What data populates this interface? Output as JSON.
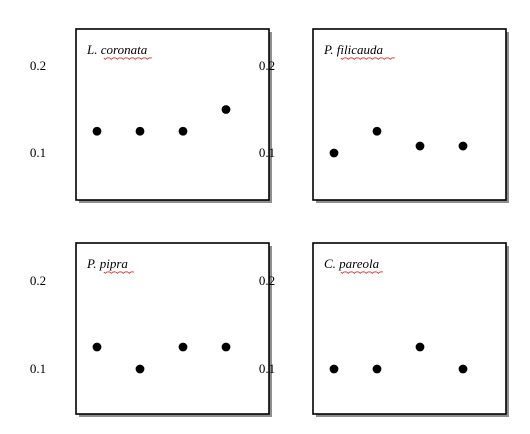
{
  "chart_data": [
    {
      "type": "scatter",
      "title": "L. coronata",
      "x": [
        1,
        2,
        3,
        4
      ],
      "y": [
        0.125,
        0.125,
        0.125,
        0.15
      ],
      "yticks": [
        "0.2",
        "0.1"
      ],
      "ylim": [
        0.05,
        0.24
      ],
      "xlim": [
        0.5,
        4.5
      ],
      "grid": false,
      "legend": "none"
    },
    {
      "type": "scatter",
      "title": "P. filicauda",
      "x": [
        1,
        2,
        3,
        4
      ],
      "y": [
        0.1,
        0.125,
        0.108,
        0.108
      ],
      "yticks": [
        "0.2",
        "0.1"
      ],
      "ylim": [
        0.05,
        0.24
      ],
      "xlim": [
        0.5,
        4.5
      ],
      "grid": false,
      "legend": "none"
    },
    {
      "type": "scatter",
      "title": "P. pipra",
      "x": [
        1,
        2,
        3,
        4
      ],
      "y": [
        0.125,
        0.1,
        0.125,
        0.125
      ],
      "yticks": [
        "0.2",
        "0.1"
      ],
      "ylim": [
        0.05,
        0.24
      ],
      "xlim": [
        0.5,
        4.5
      ],
      "grid": false,
      "legend": "none"
    },
    {
      "type": "scatter",
      "title": "C. pareola",
      "x": [
        1,
        2,
        3,
        4
      ],
      "y": [
        0.1,
        0.1,
        0.125,
        0.1
      ],
      "yticks": [
        "0.2",
        "0.1"
      ],
      "ylim": [
        0.05,
        0.24
      ],
      "xlim": [
        0.5,
        4.5
      ],
      "grid": false,
      "legend": "none"
    }
  ],
  "colors": {
    "marker": "#000000",
    "frame": "#000000",
    "shadow": "#8f8f8f",
    "spellcheck": "#d23b3b"
  }
}
